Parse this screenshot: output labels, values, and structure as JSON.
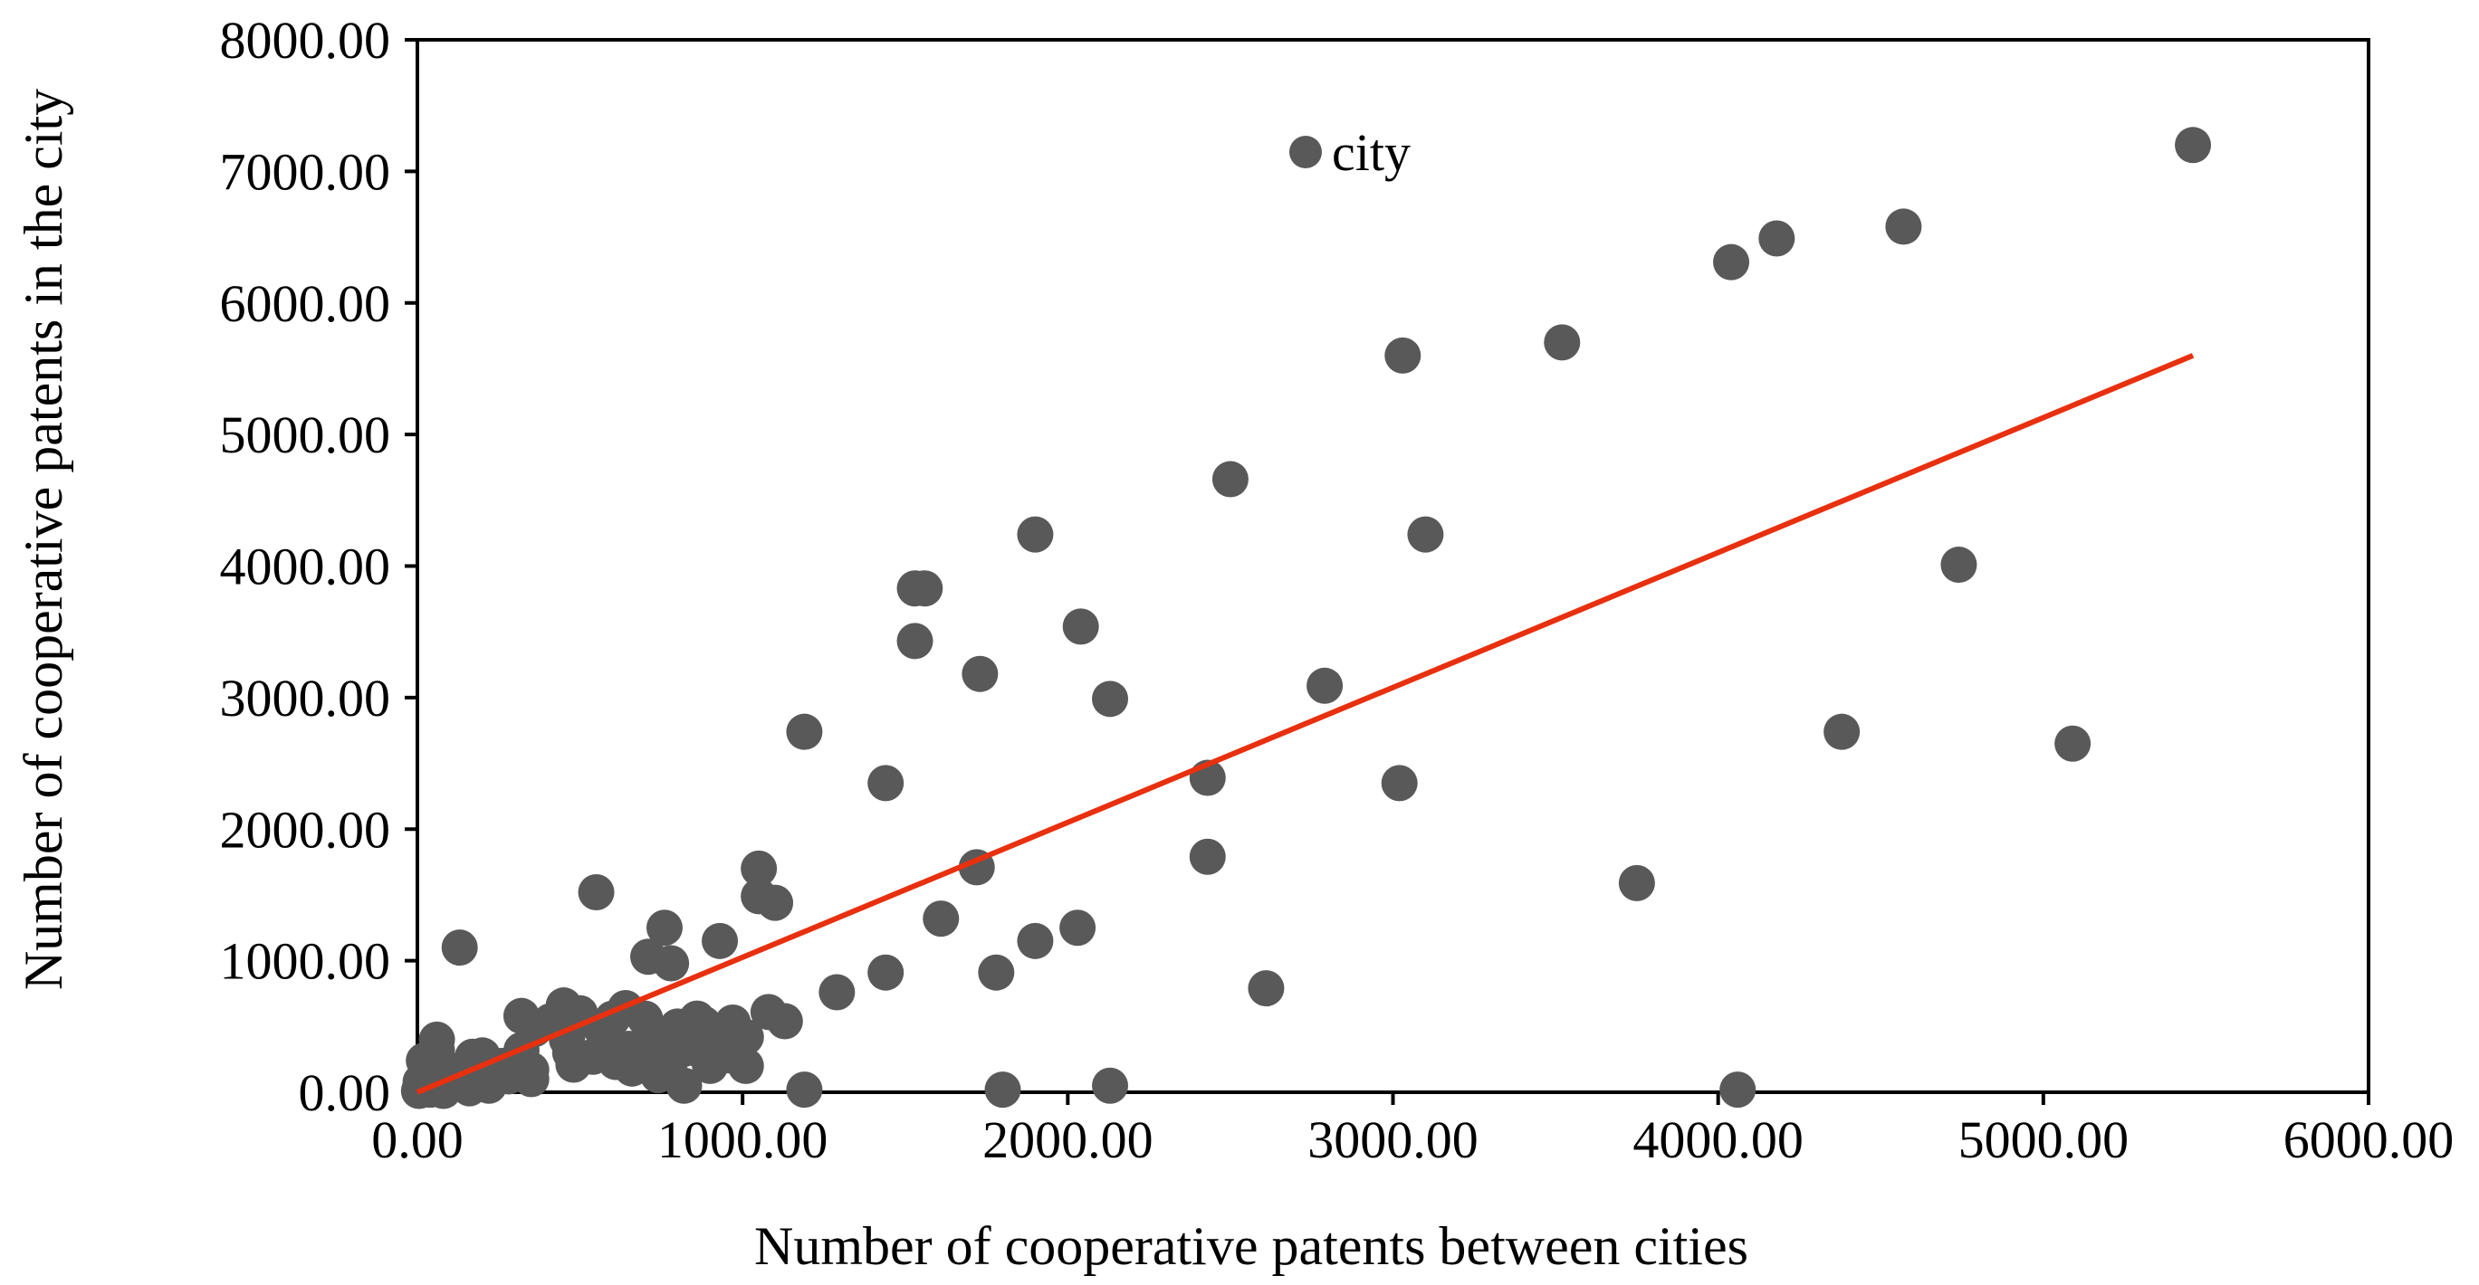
{
  "chart_data": {
    "type": "scatter",
    "xlabel": "Number of cooperative patents between cities",
    "ylabel": "Number of cooperative patents in the city",
    "xlim": [
      0,
      6000
    ],
    "ylim": [
      0,
      8000
    ],
    "x_ticks": [
      "0.00",
      "1000.00",
      "2000.00",
      "3000.00",
      "4000.00",
      "5000.00",
      "6000.00"
    ],
    "y_ticks": [
      "0.00",
      "1000.00",
      "2000.00",
      "3000.00",
      "4000.00",
      "5000.00",
      "6000.00",
      "7000.00",
      "8000.00"
    ],
    "grid": false,
    "legend_position": "top-center",
    "colors": {
      "points": "#595959",
      "trendline": "#e8300f",
      "axes": "#000000"
    },
    "series": [
      {
        "name": "city",
        "points": [
          [
            5460,
            7200
          ],
          [
            4570,
            6580
          ],
          [
            4180,
            6490
          ],
          [
            4040,
            6310
          ],
          [
            3520,
            5700
          ],
          [
            3030,
            5600
          ],
          [
            2500,
            4660
          ],
          [
            3100,
            4240
          ],
          [
            1900,
            4240
          ],
          [
            4740,
            4010
          ],
          [
            1530,
            3830
          ],
          [
            1560,
            3830
          ],
          [
            2040,
            3540
          ],
          [
            1530,
            3430
          ],
          [
            1730,
            3180
          ],
          [
            2790,
            3090
          ],
          [
            2130,
            2990
          ],
          [
            1190,
            2740
          ],
          [
            4380,
            2740
          ],
          [
            5090,
            2650
          ],
          [
            1440,
            2350
          ],
          [
            2430,
            2390
          ],
          [
            3020,
            2350
          ],
          [
            2430,
            1790
          ],
          [
            1050,
            1700
          ],
          [
            1720,
            1710
          ],
          [
            3750,
            1590
          ],
          [
            1050,
            1490
          ],
          [
            1100,
            1440
          ],
          [
            550,
            1520
          ],
          [
            1610,
            1320
          ],
          [
            760,
            1250
          ],
          [
            930,
            1150
          ],
          [
            1900,
            1150
          ],
          [
            2030,
            1250
          ],
          [
            130,
            1100
          ],
          [
            710,
            1030
          ],
          [
            780,
            980
          ],
          [
            1440,
            910
          ],
          [
            1780,
            910
          ],
          [
            1290,
            760
          ],
          [
            2610,
            790
          ],
          [
            450,
            660
          ],
          [
            320,
            580
          ],
          [
            640,
            640
          ],
          [
            500,
            600
          ],
          [
            1080,
            610
          ],
          [
            1130,
            540
          ],
          [
            880,
            520
          ],
          [
            860,
            560
          ],
          [
            970,
            530
          ],
          [
            800,
            500
          ],
          [
            700,
            560
          ],
          [
            600,
            560
          ],
          [
            560,
            500
          ],
          [
            410,
            540
          ],
          [
            360,
            480
          ],
          [
            460,
            400
          ],
          [
            590,
            350
          ],
          [
            740,
            420
          ],
          [
            820,
            390
          ],
          [
            930,
            380
          ],
          [
            1010,
            420
          ],
          [
            650,
            330
          ],
          [
            540,
            270
          ],
          [
            720,
            300
          ],
          [
            880,
            300
          ],
          [
            960,
            280
          ],
          [
            1010,
            200
          ],
          [
            900,
            200
          ],
          [
            780,
            250
          ],
          [
            610,
            230
          ],
          [
            480,
            210
          ],
          [
            350,
            170
          ],
          [
            260,
            200
          ],
          [
            170,
            270
          ],
          [
            60,
            320
          ],
          [
            20,
            240
          ],
          [
            60,
            200
          ],
          [
            120,
            160
          ],
          [
            200,
            140
          ],
          [
            280,
            120
          ],
          [
            350,
            100
          ],
          [
            90,
            130
          ],
          [
            10,
            80
          ],
          [
            40,
            60
          ],
          [
            110,
            60
          ],
          [
            160,
            30
          ],
          [
            220,
            50
          ],
          [
            40,
            20
          ],
          [
            5,
            10
          ],
          [
            80,
            10
          ],
          [
            30,
            130
          ],
          [
            200,
            280
          ],
          [
            320,
            320
          ],
          [
            470,
            300
          ],
          [
            660,
            180
          ],
          [
            820,
            330
          ],
          [
            860,
            430
          ],
          [
            740,
            130
          ],
          [
            820,
            50
          ],
          [
            1190,
            20
          ],
          [
            1800,
            20
          ],
          [
            2130,
            50
          ],
          [
            4060,
            20
          ],
          [
            60,
            400
          ]
        ]
      }
    ],
    "trendline": {
      "type": "linear",
      "x_range": [
        0,
        5460
      ],
      "y_range": [
        0,
        5600
      ]
    }
  }
}
